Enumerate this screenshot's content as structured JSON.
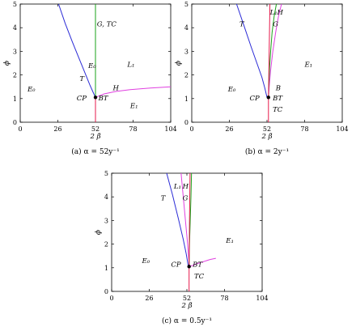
{
  "chart_data": [
    {
      "type": "line",
      "caption": "(a)  α = 52y⁻¹",
      "xlabel": "2 β̃",
      "ylabel": "ϕ",
      "xlim": [
        0,
        104
      ],
      "ylim": [
        0,
        5
      ],
      "xticks": [
        0,
        26,
        52,
        78,
        104
      ],
      "yticks": [
        0,
        1,
        2,
        3,
        4,
        5
      ],
      "series": [
        {
          "color": "#2b2bd6",
          "x": [
            26.5,
            31,
            36,
            40,
            44,
            48,
            50.5,
            52
          ],
          "y": [
            5,
            4.2,
            3.4,
            2.8,
            2.2,
            1.6,
            1.25,
            1.05
          ]
        },
        {
          "color": "#1aa31a",
          "x": [
            52,
            52
          ],
          "y": [
            1.05,
            5
          ]
        },
        {
          "color": "#e6194b",
          "x": [
            52,
            52
          ],
          "y": [
            0,
            1.05
          ]
        },
        {
          "color": "#e040e0",
          "x": [
            52,
            58,
            66,
            76,
            90,
            104
          ],
          "y": [
            1.05,
            1.2,
            1.3,
            1.38,
            1.45,
            1.5
          ]
        }
      ],
      "points": [
        {
          "x": 52,
          "y": 1.05
        }
      ],
      "annotations": [
        {
          "text": "G, TC",
          "x": 53,
          "y": 4.05
        },
        {
          "text": "E₀",
          "x": 47,
          "y": 2.3
        },
        {
          "text": "L₁",
          "x": 74,
          "y": 2.35
        },
        {
          "text": "T",
          "x": 41,
          "y": 1.75
        },
        {
          "text": "E₀",
          "x": 5,
          "y": 1.3
        },
        {
          "text": "H",
          "x": 64,
          "y": 1.35
        },
        {
          "text": "CP",
          "x": 39,
          "y": 0.93
        },
        {
          "text": "BT",
          "x": 54,
          "y": 0.93
        },
        {
          "text": "E₁",
          "x": 76,
          "y": 0.6
        }
      ]
    },
    {
      "type": "line",
      "caption": "(b)  α = 2y⁻¹",
      "xlabel": "2 β̃",
      "ylabel": "ϕ",
      "xlim": [
        0,
        104
      ],
      "ylim": [
        0,
        5
      ],
      "xticks": [
        0,
        26,
        52,
        78,
        104
      ],
      "yticks": [
        0,
        1,
        2,
        3,
        4,
        5
      ],
      "series": [
        {
          "color": "#2b2bd6",
          "x": [
            31,
            36,
            41,
            45,
            48.5,
            50.5,
            52
          ],
          "y": [
            5,
            4.1,
            3.2,
            2.5,
            1.9,
            1.45,
            1.05
          ]
        },
        {
          "color": "#e040e0",
          "x": [
            53,
            53.5,
            54.5,
            56,
            58,
            60,
            62
          ],
          "y": [
            1.05,
            1.5,
            2.2,
            3,
            3.8,
            4.5,
            5
          ]
        },
        {
          "color": "#1aa31a",
          "x": [
            53,
            53.3,
            53.8,
            54.5,
            55.5,
            57,
            58.5
          ],
          "y": [
            1.05,
            1.6,
            2.3,
            3,
            3.8,
            4.5,
            5
          ]
        },
        {
          "color": "#e6194b",
          "x": [
            53,
            53,
            53.5,
            54
          ],
          "y": [
            0,
            1.05,
            3,
            5
          ]
        }
      ],
      "points": [
        {
          "x": 53,
          "y": 1.05
        }
      ],
      "annotations": [
        {
          "text": "L₁",
          "x": 54,
          "y": 4.55
        },
        {
          "text": "H",
          "x": 59,
          "y": 4.55
        },
        {
          "text": "T",
          "x": 33,
          "y": 4.05
        },
        {
          "text": "G",
          "x": 56,
          "y": 4.05
        },
        {
          "text": "E₁",
          "x": 78,
          "y": 2.35
        },
        {
          "text": "E₀",
          "x": 25,
          "y": 1.3
        },
        {
          "text": "B",
          "x": 58,
          "y": 1.35
        },
        {
          "text": "CP",
          "x": 40,
          "y": 0.93
        },
        {
          "text": "BT",
          "x": 56,
          "y": 0.93
        },
        {
          "text": "TC",
          "x": 56,
          "y": 0.45
        }
      ]
    },
    {
      "type": "line",
      "caption": "(c)  α = 0.5y⁻¹",
      "xlabel": "2 β̃",
      "ylabel": "ϕ",
      "xlim": [
        0,
        104
      ],
      "ylim": [
        0,
        5
      ],
      "xticks": [
        0,
        26,
        52,
        78,
        104
      ],
      "yticks": [
        0,
        1,
        2,
        3,
        4,
        5
      ],
      "series": [
        {
          "color": "#2b2bd6",
          "x": [
            38,
            42,
            46,
            49.5,
            51.5,
            53
          ],
          "y": [
            5,
            4.1,
            3.1,
            2.2,
            1.6,
            1.05
          ]
        },
        {
          "color": "#e040e0",
          "x": [
            48,
            49.5,
            51,
            52.5,
            53.5,
            54
          ],
          "y": [
            5,
            4,
            3,
            2,
            1.2,
            1.05
          ]
        },
        {
          "color": "#e040e0",
          "x": [
            54,
            58,
            63,
            68,
            72
          ],
          "y": [
            1.05,
            1.15,
            1.25,
            1.35,
            1.4
          ]
        },
        {
          "color": "#1aa31a",
          "x": [
            53.5,
            53.8,
            54.3,
            54.8,
            55.2
          ],
          "y": [
            1.05,
            2,
            3,
            4,
            5
          ]
        },
        {
          "color": "#e6194b",
          "x": [
            53.5,
            53.5,
            53.8,
            54.2
          ],
          "y": [
            0,
            1.05,
            3,
            5
          ]
        }
      ],
      "points": [
        {
          "x": 53.5,
          "y": 1.05
        }
      ],
      "annotations": [
        {
          "text": "L₁",
          "x": 43,
          "y": 4.35
        },
        {
          "text": "H",
          "x": 49,
          "y": 4.35
        },
        {
          "text": "T",
          "x": 34,
          "y": 3.85
        },
        {
          "text": "G",
          "x": 49,
          "y": 3.85
        },
        {
          "text": "E₁",
          "x": 79,
          "y": 2.05
        },
        {
          "text": "E₀",
          "x": 21,
          "y": 1.2
        },
        {
          "text": "CP",
          "x": 41,
          "y": 1.05
        },
        {
          "text": "BT",
          "x": 56,
          "y": 1.05
        },
        {
          "text": "TC",
          "x": 57,
          "y": 0.55
        }
      ]
    }
  ]
}
